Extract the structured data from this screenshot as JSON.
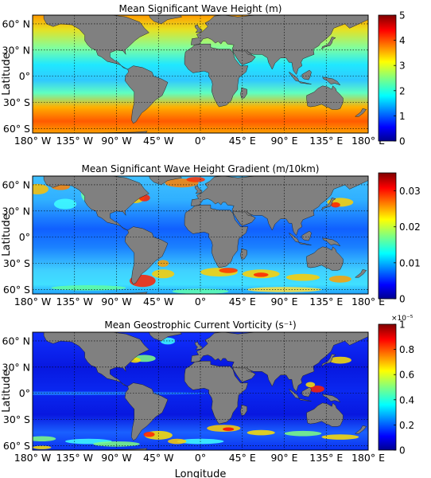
{
  "figure": {
    "xlabel": "Longitude",
    "ylabel": "Latitude",
    "lon_ticks": [
      "180° W",
      "135° W",
      "90° W",
      "45° W",
      "0°",
      "45° E",
      "90° E",
      "135° E",
      "180° E"
    ],
    "lat_ticks": [
      "60° N",
      "30° N",
      "0°",
      "30° S",
      "60° S"
    ],
    "land_color": "#808080",
    "colormap": [
      "#00008f",
      "#0000ff",
      "#0080ff",
      "#00ffff",
      "#80ff80",
      "#ffff00",
      "#ff8000",
      "#ff0000",
      "#800000"
    ]
  },
  "panels": [
    {
      "title": "Mean Significant Wave Height (m)",
      "colorbar_ticks": [
        "0",
        "1",
        "2",
        "3",
        "4",
        "5"
      ],
      "colorbar_exponent": "",
      "vmax": 5
    },
    {
      "title": "Mean Significant Wave Height Gradient (m/10km)",
      "colorbar_ticks": [
        "0",
        "0.01",
        "0.02",
        "0.03"
      ],
      "colorbar_exponent": "",
      "vmax": 0.035
    },
    {
      "title": "Mean Geostrophic Current Vorticity (s⁻¹)",
      "colorbar_ticks": [
        "0",
        "0.2",
        "0.4",
        "0.6",
        "0.8",
        "1"
      ],
      "colorbar_exponent": "×10⁻⁵",
      "vmax": 1
    }
  ]
}
